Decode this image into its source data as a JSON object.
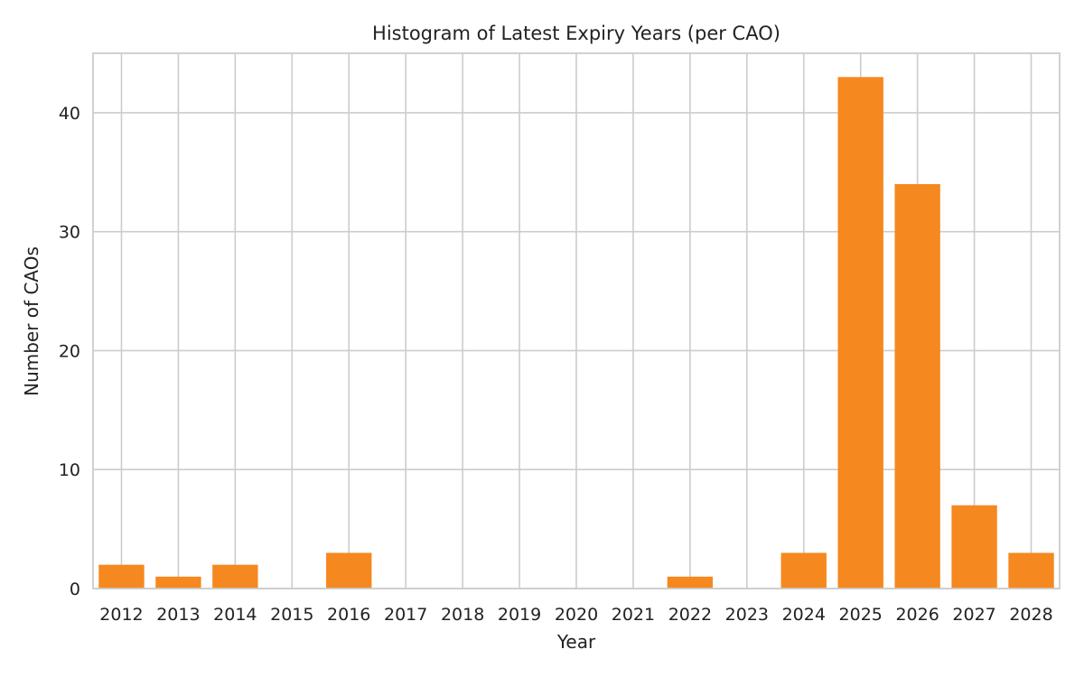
{
  "chart_data": {
    "type": "bar",
    "title": "Histogram of Latest Expiry Years (per CAO)",
    "xlabel": "Year",
    "ylabel": "Number of CAOs",
    "categories": [
      "2012",
      "2013",
      "2014",
      "2015",
      "2016",
      "2017",
      "2018",
      "2019",
      "2020",
      "2021",
      "2022",
      "2023",
      "2024",
      "2025",
      "2026",
      "2027",
      "2028"
    ],
    "values": [
      2,
      1,
      2,
      0,
      3,
      0,
      0,
      0,
      0,
      0,
      1,
      0,
      3,
      43,
      34,
      7,
      3
    ],
    "ylim": [
      0,
      45
    ],
    "yticks": [
      0,
      10,
      20,
      30,
      40
    ],
    "grid": true,
    "colors": {
      "bar": "#f5881f",
      "grid": "#cccccc",
      "text": "#222222"
    }
  }
}
